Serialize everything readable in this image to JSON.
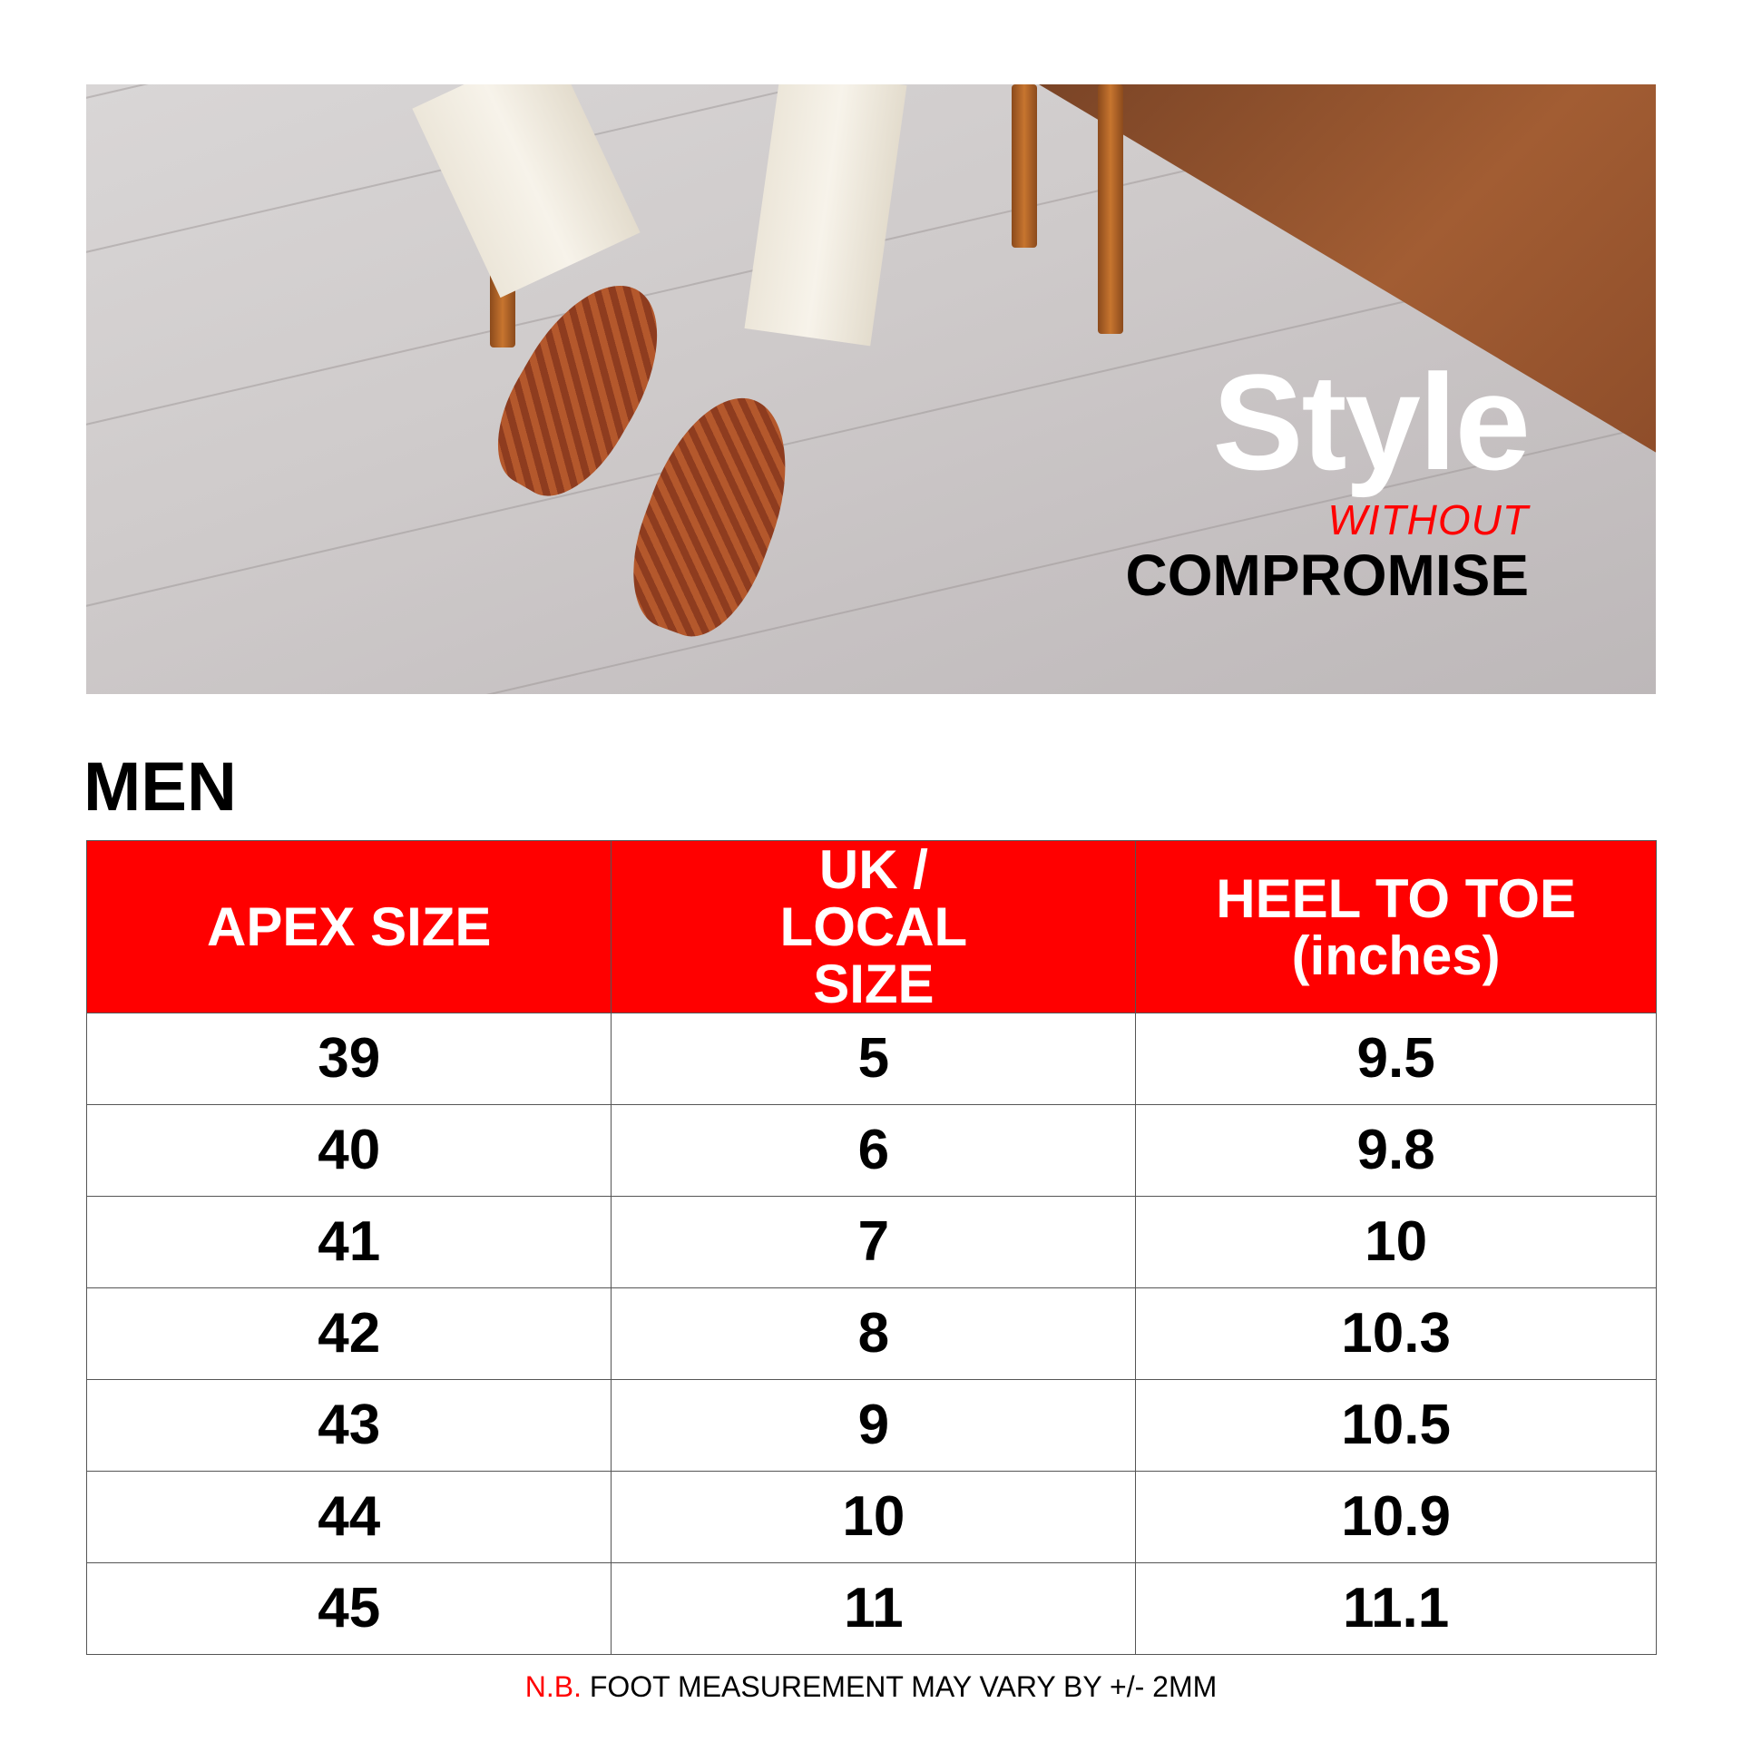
{
  "hero": {
    "headline": "Style",
    "subline": "WITHOUT",
    "tagline": "COMPROMISE"
  },
  "section_title": "MEN",
  "table": {
    "headers": [
      "APEX SIZE",
      "UK / LOCAL SIZE",
      "HEEL TO TOE (inches)"
    ],
    "rows": [
      [
        "39",
        "5",
        "9.5"
      ],
      [
        "40",
        "6",
        "9.8"
      ],
      [
        "41",
        "7",
        "10"
      ],
      [
        "42",
        "8",
        "10.3"
      ],
      [
        "43",
        "9",
        "10.5"
      ],
      [
        "44",
        "10",
        "10.9"
      ],
      [
        "45",
        "11",
        "11.1"
      ]
    ]
  },
  "footer": {
    "nb_label": "N.B.",
    "note": "FOOT MEASUREMENT MAY VARY BY +/- 2MM"
  },
  "colors": {
    "accent": "#ff0000",
    "text": "#000000"
  }
}
